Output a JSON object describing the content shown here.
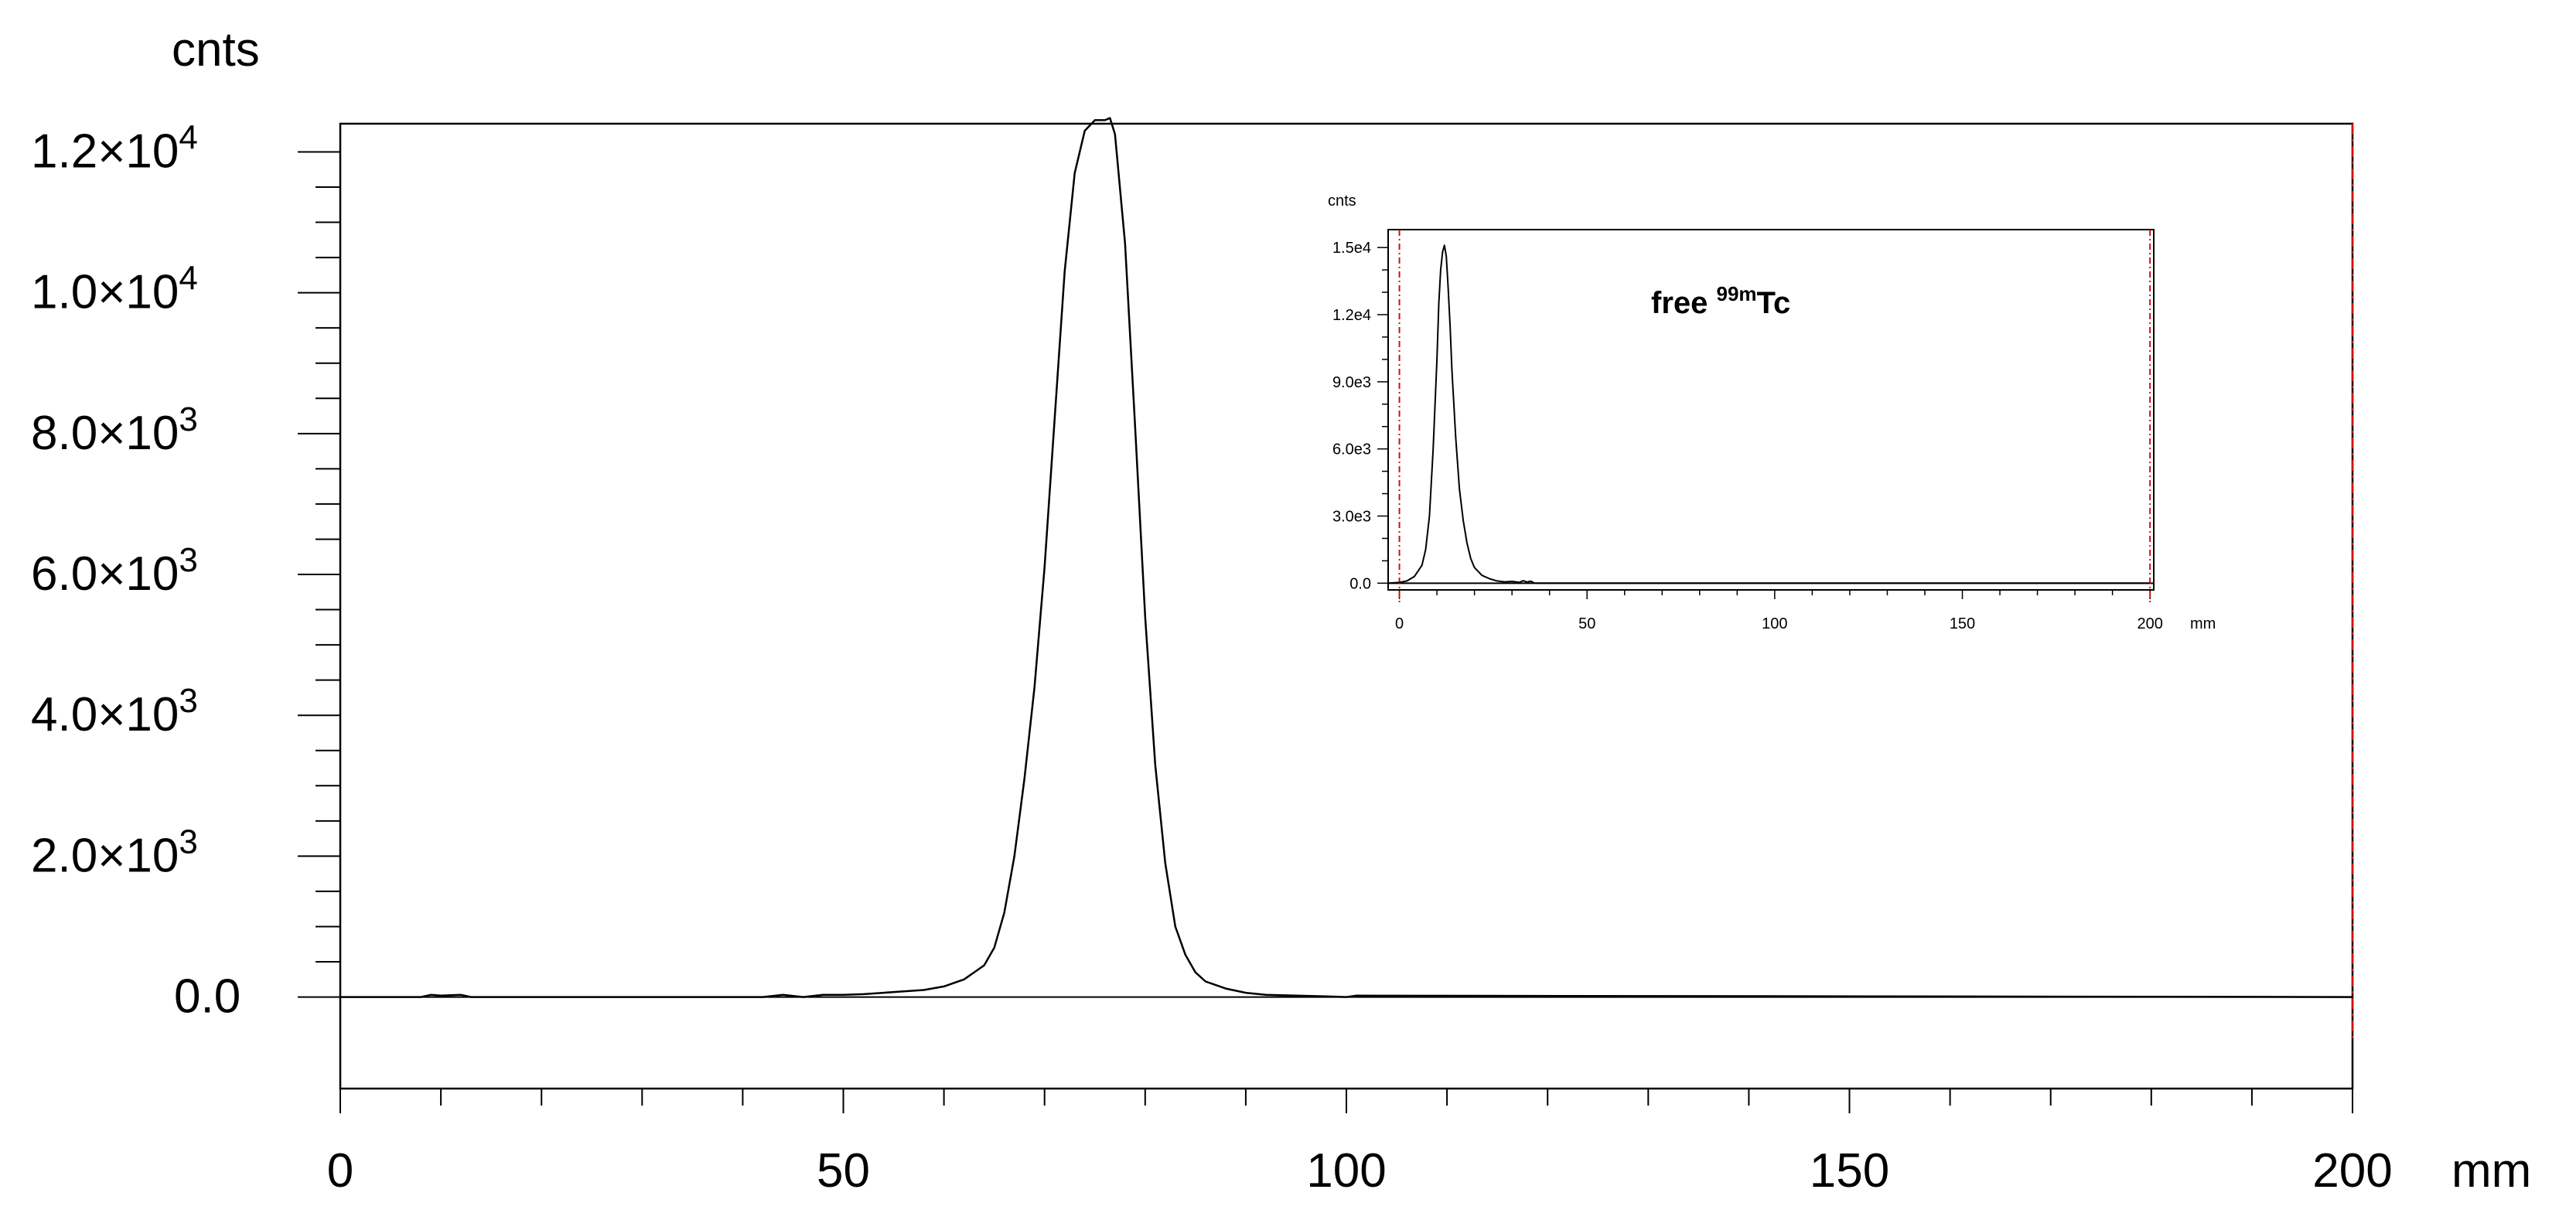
{
  "chart_data": [
    {
      "type": "line",
      "xlabel": "mm",
      "ylabel": "cnts",
      "xlim": [
        0,
        200
      ],
      "ylim": [
        -1300,
        12400
      ],
      "x_ticks": [
        0,
        50,
        100,
        150,
        200
      ],
      "x_tick_labels": [
        "0",
        "50",
        "100",
        "150",
        "200"
      ],
      "y_ticks": [
        {
          "value": 0,
          "mantissa": "0.0",
          "exponent": ""
        },
        {
          "value": 2000,
          "mantissa": "2.0×10",
          "exponent": "3"
        },
        {
          "value": 4000,
          "mantissa": "4.0×10",
          "exponent": "3"
        },
        {
          "value": 6000,
          "mantissa": "6.0×10",
          "exponent": "3"
        },
        {
          "value": 8000,
          "mantissa": "8.0×10",
          "exponent": "3"
        },
        {
          "value": 10000,
          "mantissa": "1.0×10",
          "exponent": "4"
        },
        {
          "value": 12000,
          "mantissa": "1.2×10",
          "exponent": "4"
        }
      ],
      "grid": false,
      "marker_lines": [
        {
          "x": 200,
          "color": "#d01010",
          "style": "dash-dot"
        }
      ],
      "series": [
        {
          "color": "#000000",
          "x": [
            0,
            8,
            9,
            10,
            12,
            13,
            42,
            44,
            46,
            48,
            50,
            52,
            54,
            56,
            58,
            60,
            62,
            64,
            65,
            66,
            67,
            68,
            69,
            70,
            71,
            72,
            73,
            74,
            75,
            76,
            76.5,
            77,
            78,
            79,
            80,
            81,
            82,
            83,
            84,
            85,
            86,
            88,
            90,
            92,
            95,
            98,
            100,
            101,
            200
          ],
          "y": [
            0,
            0,
            30,
            20,
            30,
            0,
            0,
            30,
            0,
            30,
            30,
            40,
            60,
            80,
            100,
            150,
            250,
            450,
            700,
            1200,
            2000,
            3100,
            4400,
            6100,
            8200,
            10300,
            11700,
            12300,
            12450,
            12450,
            12480,
            12250,
            10700,
            8100,
            5400,
            3300,
            1900,
            1000,
            600,
            350,
            220,
            120,
            60,
            30,
            20,
            10,
            0,
            20,
            0
          ]
        }
      ]
    },
    {
      "type": "line",
      "xlabel": "mm",
      "ylabel": "cnts",
      "xlim": [
        -3,
        201
      ],
      "ylim": [
        -300,
        15800
      ],
      "x_ticks": [
        0,
        50,
        100,
        150,
        200
      ],
      "x_tick_labels": [
        "0",
        "50",
        "100",
        "150",
        "200"
      ],
      "y_ticks": [
        0,
        3000,
        6000,
        9000,
        12000,
        15000
      ],
      "y_tick_labels": [
        "0.0",
        "3.0e3",
        "6.0e3",
        "9.0e3",
        "1.2e4",
        "1.5e4"
      ],
      "grid": false,
      "annotation": {
        "prefix": "free ",
        "superscript": "99m",
        "suffix": "Tc"
      },
      "marker_lines": [
        {
          "x": 0,
          "color": "#d01010",
          "style": "dash-dot"
        },
        {
          "x": 200,
          "color": "#d01010",
          "style": "dash-dot"
        }
      ],
      "series": [
        {
          "color": "#000000",
          "x": [
            -3,
            0,
            2,
            4,
            6,
            7,
            8,
            9,
            10,
            10.5,
            11,
            11.5,
            12,
            12.5,
            13,
            13.5,
            14,
            15,
            16,
            17,
            18,
            19,
            20,
            22,
            24,
            26,
            28,
            30,
            32,
            33,
            34,
            35,
            36,
            200
          ],
          "y": [
            0,
            30,
            100,
            300,
            800,
            1500,
            3000,
            6000,
            10000,
            12500,
            14000,
            14800,
            15100,
            14600,
            13200,
            11500,
            9500,
            6500,
            4200,
            2800,
            1800,
            1100,
            700,
            350,
            200,
            100,
            60,
            80,
            40,
            110,
            50,
            90,
            0,
            0
          ]
        }
      ]
    }
  ]
}
